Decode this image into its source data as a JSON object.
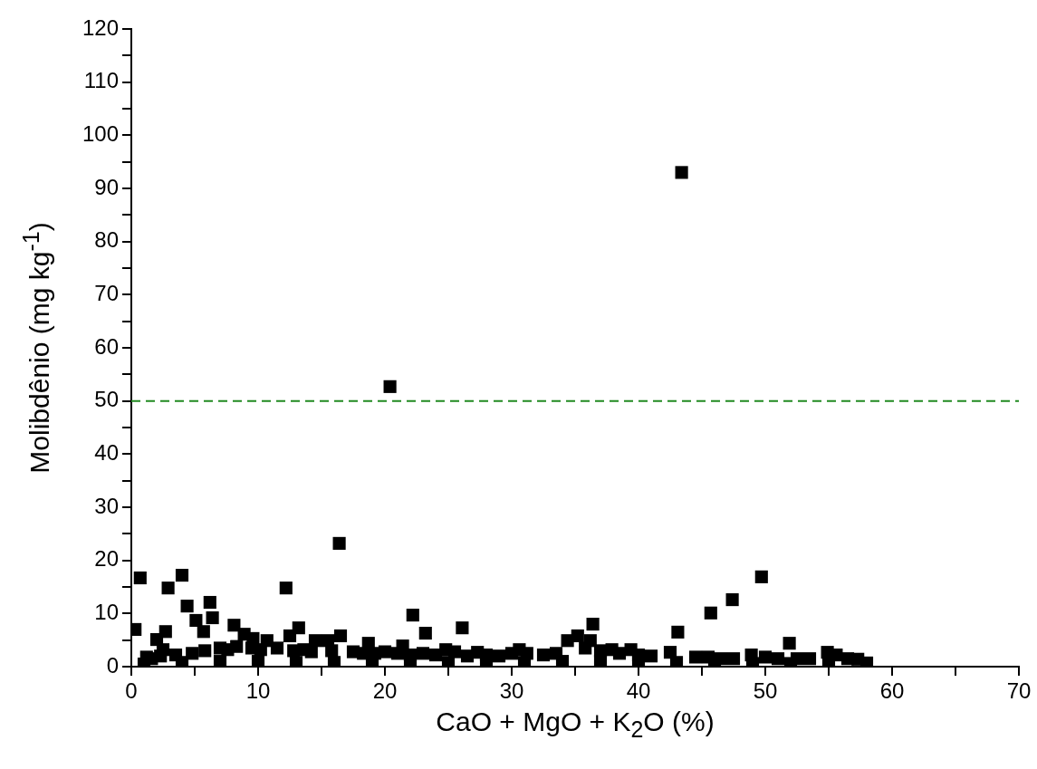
{
  "chart_data": {
    "type": "scatter",
    "xlabel": "CaO + MgO + K$_{2}$O (%)",
    "ylabel": "Molibdênio (mg kg$^{-1}$)",
    "xlim": [
      0,
      70
    ],
    "xticks": [
      0,
      {
        "value": 5,
        "label": null
      },
      10,
      {
        "value": 15,
        "label": null
      },
      20,
      {
        "value": 25,
        "label": null
      },
      30,
      {
        "value": 35,
        "label": null
      },
      40,
      {
        "value": 45,
        "label": null
      },
      50,
      {
        "value": 55,
        "label": null
      },
      60,
      {
        "value": 65,
        "label": null
      },
      70
    ],
    "ylim": [
      0,
      120
    ],
    "yticks": [
      0,
      {
        "value": 5,
        "label": null
      },
      10,
      {
        "value": 15,
        "label": null
      },
      20,
      {
        "value": 25,
        "label": null
      },
      30,
      {
        "value": 35,
        "label": null
      },
      40,
      {
        "value": 45,
        "label": null
      },
      50,
      {
        "value": 55,
        "label": null
      },
      60,
      {
        "value": 65,
        "label": null
      },
      70,
      {
        "value": 75,
        "label": null
      },
      80,
      {
        "value": 85,
        "label": null
      },
      90,
      {
        "value": 95,
        "label": null
      },
      100,
      {
        "value": 105,
        "label": null
      },
      110,
      {
        "value": 115,
        "label": null
      },
      120
    ],
    "marker": "square",
    "grid": false,
    "legend": false,
    "ref_lines": [
      {
        "axis": "y",
        "value": 50,
        "color": "#228b22",
        "line_style": "dashed"
      }
    ],
    "series": [
      {
        "color": "#000000",
        "x": [
          43.4,
          20.4,
          16.4,
          0.7,
          4.0,
          2.9,
          12.2,
          49.7,
          4.4,
          6.2,
          47.4,
          45.7,
          22.2,
          0.3,
          5.1,
          6.4,
          5.7,
          2.7,
          2.0,
          8.1,
          8.9,
          13.2,
          12.5,
          23.2,
          16.5,
          26.1,
          36.4,
          35.2,
          34.4,
          36.2,
          43.1,
          51.9,
          2.5,
          1.6,
          14.5,
          15.5,
          18.7,
          21.4,
          9.6,
          10.7,
          24.8,
          30.6,
          37.9,
          39.4,
          42.5,
          27.3,
          48.9,
          54.9,
          55.6,
          57.3,
          58.0,
          1.2,
          2.3,
          3.5,
          4.8,
          5.8,
          7.0,
          7.6,
          8.3,
          9.5,
          10.2,
          11.5,
          12.8,
          13.6,
          14.2,
          15.8,
          17.5,
          18.3,
          19.2,
          20.0,
          21.0,
          22.0,
          23.0,
          24.0,
          25.5,
          26.5,
          28.0,
          29.0,
          30.0,
          31.2,
          32.5,
          33.5,
          35.8,
          37.0,
          38.5,
          40.0,
          41.0,
          44.5,
          45.5,
          46.5,
          47.5,
          50.0,
          51.0,
          52.5,
          53.5,
          56.5,
          1.0,
          4.0,
          7.0,
          10.0,
          13.0,
          16.0,
          19.0,
          22.0,
          25.0,
          28.0,
          31.0,
          34.0,
          37.0,
          40.0,
          43.0,
          46.0,
          49.0,
          52.0,
          55.0
        ],
        "values": [
          93.0,
          52.7,
          23.2,
          16.7,
          17.2,
          14.8,
          14.8,
          16.9,
          11.4,
          12.1,
          12.6,
          10.1,
          9.7,
          7.0,
          8.7,
          9.2,
          6.6,
          6.6,
          5.1,
          7.8,
          6.1,
          7.3,
          5.8,
          6.3,
          5.8,
          7.3,
          8.0,
          5.8,
          4.9,
          4.9,
          6.5,
          4.4,
          3.2,
          1.5,
          4.9,
          4.9,
          4.4,
          3.9,
          5.3,
          4.9,
          3.2,
          3.2,
          3.2,
          3.2,
          2.7,
          2.7,
          2.2,
          2.7,
          2.2,
          1.4,
          0.7,
          1.8,
          2.0,
          2.2,
          2.5,
          3.0,
          3.5,
          3.2,
          3.8,
          3.5,
          3.2,
          3.5,
          3.0,
          3.2,
          2.8,
          3.0,
          2.8,
          2.5,
          2.5,
          2.8,
          2.5,
          2.2,
          2.5,
          2.2,
          2.8,
          2.0,
          2.2,
          2.0,
          2.5,
          2.5,
          2.2,
          2.5,
          3.5,
          3.0,
          2.5,
          2.2,
          2.0,
          1.8,
          1.8,
          1.5,
          1.5,
          1.8,
          1.5,
          1.5,
          1.5,
          1.5,
          0.5,
          0.8,
          1.0,
          1.0,
          0.8,
          0.8,
          0.8,
          0.8,
          0.8,
          0.8,
          0.8,
          1.0,
          1.0,
          0.8,
          0.8,
          0.6,
          0.6,
          0.6,
          0.5
        ]
      }
    ]
  }
}
